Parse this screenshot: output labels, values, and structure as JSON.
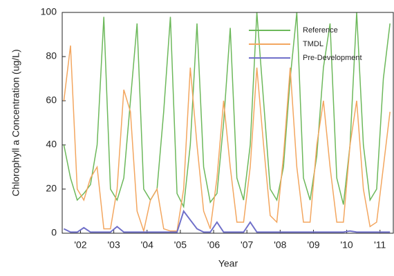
{
  "chart_data": {
    "type": "line",
    "x_label": "Year",
    "y_label": "Chlorophyll a Concentration (ug/L)",
    "xlim": [
      2001.45,
      2011.4
    ],
    "ylim": [
      0,
      100
    ],
    "yticks": [
      0,
      20,
      40,
      60,
      80,
      100
    ],
    "xticks": [
      {
        "value": 2002,
        "label": "'02"
      },
      {
        "value": 2003,
        "label": "'03"
      },
      {
        "value": 2004,
        "label": "'04"
      },
      {
        "value": 2005,
        "label": "'05"
      },
      {
        "value": 2006,
        "label": "'06"
      },
      {
        "value": 2007,
        "label": "'07"
      },
      {
        "value": 2008,
        "label": "'08"
      },
      {
        "value": 2009,
        "label": "'09"
      },
      {
        "value": 2010,
        "label": "'10"
      },
      {
        "value": 2011,
        "label": "'11"
      }
    ],
    "x": [
      2001.5,
      2001.7,
      2001.9,
      2002.1,
      2002.3,
      2002.5,
      2002.7,
      2002.9,
      2003.1,
      2003.3,
      2003.5,
      2003.7,
      2003.9,
      2004.1,
      2004.3,
      2004.5,
      2004.7,
      2004.9,
      2005.1,
      2005.3,
      2005.5,
      2005.7,
      2005.9,
      2006.1,
      2006.3,
      2006.5,
      2006.7,
      2006.9,
      2007.1,
      2007.3,
      2007.5,
      2007.7,
      2007.9,
      2008.1,
      2008.3,
      2008.5,
      2008.7,
      2008.9,
      2009.1,
      2009.3,
      2009.5,
      2009.7,
      2009.9,
      2010.1,
      2010.3,
      2010.5,
      2010.7,
      2010.9,
      2011.1,
      2011.3
    ],
    "series": [
      {
        "name": "Reference",
        "color": "#6cb85a",
        "values": [
          40,
          25,
          15,
          18,
          22,
          40,
          98,
          20,
          15,
          25,
          60,
          95,
          20,
          15,
          20,
          55,
          98,
          18,
          12,
          40,
          95,
          30,
          14,
          18,
          50,
          93,
          25,
          15,
          40,
          100,
          60,
          20,
          15,
          30,
          70,
          100,
          25,
          15,
          35,
          75,
          95,
          25,
          13,
          40,
          100,
          40,
          15,
          20,
          70,
          95
        ]
      },
      {
        "name": "TMDL",
        "color": "#f3a65f",
        "values": [
          60,
          85,
          20,
          15,
          25,
          30,
          2,
          2,
          20,
          65,
          55,
          10,
          1,
          15,
          20,
          2,
          1,
          1,
          20,
          75,
          40,
          10,
          2,
          25,
          60,
          30,
          5,
          5,
          30,
          75,
          40,
          8,
          5,
          35,
          75,
          30,
          5,
          5,
          40,
          60,
          30,
          5,
          5,
          40,
          60,
          20,
          3,
          5,
          30,
          55
        ]
      },
      {
        "name": "Pre-Development",
        "color": "#6f6fc9",
        "values": [
          2,
          0.5,
          0.5,
          2.5,
          0.5,
          0.5,
          0.5,
          0.5,
          3,
          0.5,
          0.5,
          0.5,
          0.5,
          0.5,
          0.5,
          0.5,
          0.5,
          0.5,
          10,
          6,
          2,
          0.5,
          0.5,
          5,
          0.5,
          0.5,
          0.5,
          0.5,
          5,
          0.5,
          0.5,
          0.5,
          0.5,
          0.5,
          0.5,
          0.5,
          0.5,
          0.5,
          0.5,
          0.5,
          0.5,
          0.5,
          0.5,
          1,
          0.5,
          0.5,
          0.5,
          0.5,
          0.5,
          0.5
        ]
      }
    ],
    "legend": "upper right"
  }
}
